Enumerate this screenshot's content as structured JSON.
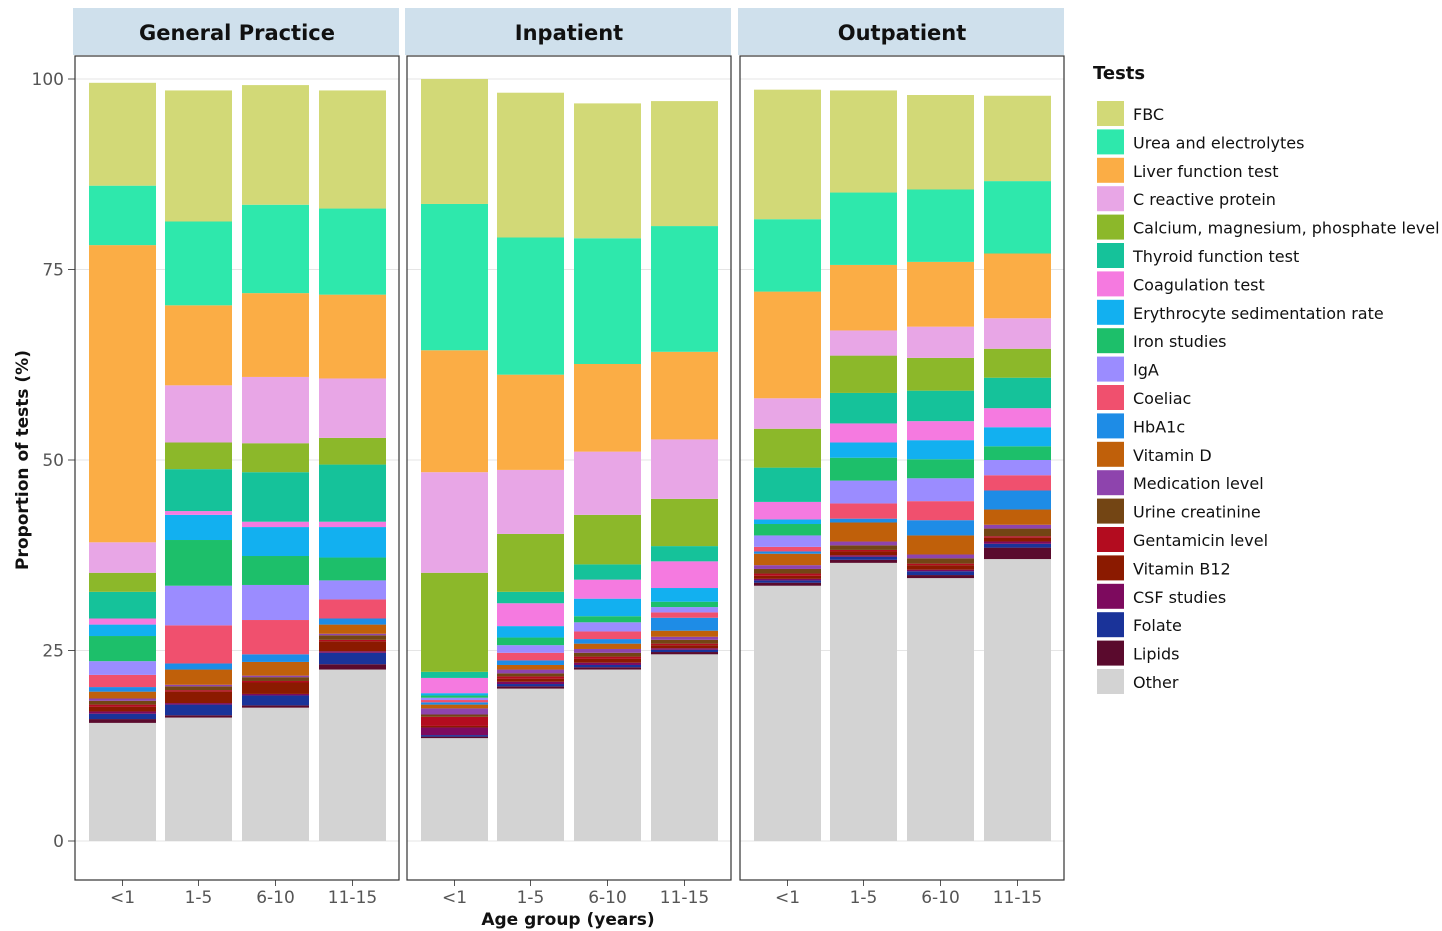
{
  "chart_data": {
    "type": "bar",
    "stacked": true,
    "facets": [
      "General Practice",
      "Inpatient",
      "Outpatient"
    ],
    "categories": [
      "<1",
      "1-5",
      "6-10",
      "11-15"
    ],
    "xlabel": "Age group (years)",
    "ylabel": "Proportion of tests (%)",
    "ylim": [
      0,
      100
    ],
    "yticks": [
      0,
      25,
      50,
      75,
      100
    ],
    "grid": true,
    "legend_title": "Tests",
    "legend_position": "right",
    "series": [
      {
        "name": "Other",
        "color": "#d3d3d3",
        "values": {
          "General Practice": [
            15.5,
            16.2,
            17.5,
            22.5
          ],
          "Inpatient": [
            13.5,
            20.0,
            22.5,
            24.5
          ],
          "Outpatient": [
            33.5,
            36.5,
            34.5,
            37.0
          ]
        }
      },
      {
        "name": "Lipids",
        "color": "#5a0a2d",
        "values": {
          "General Practice": [
            0.5,
            0.3,
            0.3,
            0.7
          ],
          "Inpatient": [
            0.2,
            0.3,
            0.3,
            0.3
          ],
          "Outpatient": [
            0.4,
            0.4,
            0.4,
            1.5
          ]
        }
      },
      {
        "name": "Folate",
        "color": "#1a3399",
        "values": {
          "General Practice": [
            0.7,
            1.4,
            1.3,
            1.5
          ],
          "Inpatient": [
            0.2,
            0.3,
            0.3,
            0.3
          ],
          "Outpatient": [
            0.3,
            0.4,
            0.5,
            0.5
          ]
        }
      },
      {
        "name": "CSF studies",
        "color": "#7d0a5e",
        "values": {
          "General Practice": [
            0.3,
            0.2,
            0.2,
            0.2
          ],
          "Inpatient": [
            1.0,
            0.3,
            0.3,
            0.2
          ],
          "Outpatient": [
            0.2,
            0.2,
            0.2,
            0.3
          ]
        }
      },
      {
        "name": "Vitamin B12",
        "color": "#8b1a00",
        "values": {
          "General Practice": [
            0.6,
            1.5,
            1.5,
            1.3
          ],
          "Inpatient": [
            0.2,
            0.4,
            0.5,
            0.4
          ],
          "Outpatient": [
            0.4,
            0.5,
            0.6,
            0.5
          ]
        }
      },
      {
        "name": "Gentamicin level",
        "color": "#b30c1f",
        "values": {
          "General Practice": [
            0.3,
            0.2,
            0.2,
            0.2
          ],
          "Inpatient": [
            1.2,
            0.3,
            0.3,
            0.2
          ],
          "Outpatient": [
            0.3,
            0.2,
            0.2,
            0.2
          ]
        }
      },
      {
        "name": "Urine creatinine",
        "color": "#734514",
        "values": {
          "General Practice": [
            0.5,
            0.5,
            0.5,
            0.6
          ],
          "Inpatient": [
            0.3,
            0.4,
            0.5,
            0.5
          ],
          "Outpatient": [
            0.6,
            0.6,
            0.7,
            1.0
          ]
        }
      },
      {
        "name": "Medication level",
        "color": "#8e44ad",
        "values": {
          "General Practice": [
            0.3,
            0.2,
            0.2,
            0.2
          ],
          "Inpatient": [
            0.8,
            0.5,
            0.5,
            0.4
          ],
          "Outpatient": [
            0.5,
            0.5,
            0.5,
            0.5
          ]
        }
      },
      {
        "name": "Vitamin D",
        "color": "#c0600a",
        "values": {
          "General Practice": [
            0.9,
            2.0,
            1.8,
            1.2
          ],
          "Inpatient": [
            0.5,
            0.6,
            0.7,
            0.8
          ],
          "Outpatient": [
            1.5,
            2.5,
            2.5,
            2.0
          ]
        }
      },
      {
        "name": "HbA1c",
        "color": "#1e8ce6",
        "values": {
          "General Practice": [
            0.6,
            0.8,
            1.0,
            0.8
          ],
          "Inpatient": [
            0.3,
            0.6,
            0.6,
            1.7
          ],
          "Outpatient": [
            0.3,
            0.5,
            2.0,
            2.5
          ]
        }
      },
      {
        "name": "Coeliac",
        "color": "#f0506e",
        "values": {
          "General Practice": [
            1.6,
            5.0,
            4.5,
            2.5
          ],
          "Inpatient": [
            0.3,
            1.0,
            1.0,
            0.7
          ],
          "Outpatient": [
            0.6,
            2.0,
            2.5,
            2.0
          ]
        }
      },
      {
        "name": "IgA",
        "color": "#9b8cff",
        "values": {
          "General Practice": [
            1.8,
            5.2,
            4.6,
            2.5
          ],
          "Inpatient": [
            0.3,
            1.0,
            1.2,
            0.7
          ],
          "Outpatient": [
            1.5,
            3.0,
            3.0,
            2.0
          ]
        }
      },
      {
        "name": "Iron studies",
        "color": "#1dbf6a",
        "values": {
          "General Practice": [
            3.3,
            6.0,
            3.8,
            3.0
          ],
          "Inpatient": [
            0.3,
            1.0,
            0.8,
            0.7
          ],
          "Outpatient": [
            1.5,
            3.0,
            2.5,
            1.8
          ]
        }
      },
      {
        "name": "Erythrocyte sedimentation rate",
        "color": "#12b0f0",
        "values": {
          "General Practice": [
            1.5,
            3.3,
            3.8,
            4.0
          ],
          "Inpatient": [
            0.3,
            1.5,
            2.3,
            1.8
          ],
          "Outpatient": [
            0.6,
            2.0,
            2.5,
            2.5
          ]
        }
      },
      {
        "name": "Coagulation test",
        "color": "#f57ae0",
        "values": {
          "General Practice": [
            0.8,
            0.5,
            0.7,
            0.7
          ],
          "Inpatient": [
            2.0,
            3.0,
            2.5,
            3.5
          ],
          "Outpatient": [
            2.3,
            2.5,
            2.5,
            2.5
          ]
        }
      },
      {
        "name": "Thyroid function test",
        "color": "#15c29a",
        "values": {
          "General Practice": [
            3.5,
            5.5,
            6.5,
            7.5
          ],
          "Inpatient": [
            0.8,
            1.5,
            2.0,
            2.0
          ],
          "Outpatient": [
            4.5,
            4.0,
            4.0,
            4.0
          ]
        }
      },
      {
        "name": "Calcium, magnesium, phosphate level",
        "color": "#8cb82a",
        "values": {
          "General Practice": [
            2.5,
            3.5,
            3.8,
            3.5
          ],
          "Inpatient": [
            13.0,
            7.6,
            6.5,
            6.2
          ],
          "Outpatient": [
            5.1,
            4.9,
            4.3,
            3.8
          ]
        }
      },
      {
        "name": "C reactive protein",
        "color": "#e8a6e6",
        "values": {
          "General Practice": [
            4.0,
            7.5,
            8.7,
            7.8
          ],
          "Inpatient": [
            13.2,
            8.4,
            8.3,
            7.8
          ],
          "Outpatient": [
            4.0,
            3.3,
            4.1,
            4.0
          ]
        }
      },
      {
        "name": "Liver function test",
        "color": "#fbad45",
        "values": {
          "General Practice": [
            39.0,
            10.5,
            11.0,
            11.0
          ],
          "Inpatient": [
            16.0,
            12.5,
            11.5,
            11.5
          ],
          "Outpatient": [
            14.0,
            8.6,
            8.5,
            8.5
          ]
        }
      },
      {
        "name": "Urea and electrolytes",
        "color": "#2ee8ac",
        "values": {
          "General Practice": [
            7.8,
            11.0,
            11.6,
            11.3
          ],
          "Inpatient": [
            19.2,
            18.0,
            16.5,
            16.5
          ],
          "Outpatient": [
            9.5,
            9.5,
            9.5,
            9.5
          ]
        }
      },
      {
        "name": "FBC",
        "color": "#d2d977",
        "values": {
          "General Practice": [
            13.5,
            17.2,
            15.7,
            15.5
          ],
          "Inpatient": [
            16.4,
            19.0,
            17.7,
            16.4
          ],
          "Outpatient": [
            17.0,
            13.4,
            12.4,
            11.2
          ]
        }
      }
    ]
  }
}
